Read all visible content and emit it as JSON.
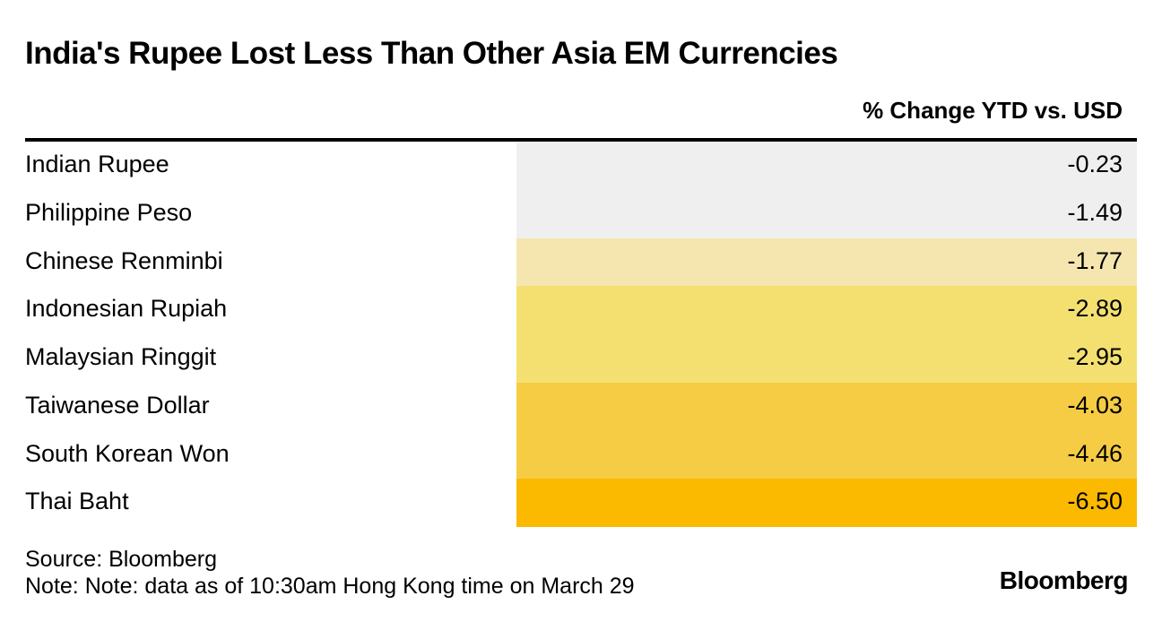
{
  "title": "India's Rupee Lost Less Than Other Asia EM Currencies",
  "column_header": "% Change YTD vs. USD",
  "source": "Source: Bloomberg",
  "note": "Note: Note: data as of 10:30am Hong Kong time on March 29",
  "brand": "Bloomberg",
  "colors": {
    "rule": "#000000",
    "text": "#000000",
    "background": "#ffffff"
  },
  "chart_data": {
    "type": "table",
    "title": "India's Rupee Lost Less Than Other Asia EM Currencies",
    "columns": [
      "",
      "% Change YTD vs. USD"
    ],
    "rows": [
      {
        "currency": "Indian Rupee",
        "value": "-0.23",
        "color": "#efefef"
      },
      {
        "currency": "Philippine Peso",
        "value": "-1.49",
        "color": "#efefef"
      },
      {
        "currency": "Chinese Renminbi",
        "value": "-1.77",
        "color": "#f5e6b0"
      },
      {
        "currency": "Indonesian Rupiah",
        "value": "-2.89",
        "color": "#f4e070"
      },
      {
        "currency": "Malaysian Ringgit",
        "value": "-2.95",
        "color": "#f4e070"
      },
      {
        "currency": "Taiwanese Dollar",
        "value": "-4.03",
        "color": "#f6cc44"
      },
      {
        "currency": "South Korean Won",
        "value": "-4.46",
        "color": "#f6cc44"
      },
      {
        "currency": "Thai Baht",
        "value": "-6.50",
        "color": "#fbb900"
      }
    ]
  }
}
